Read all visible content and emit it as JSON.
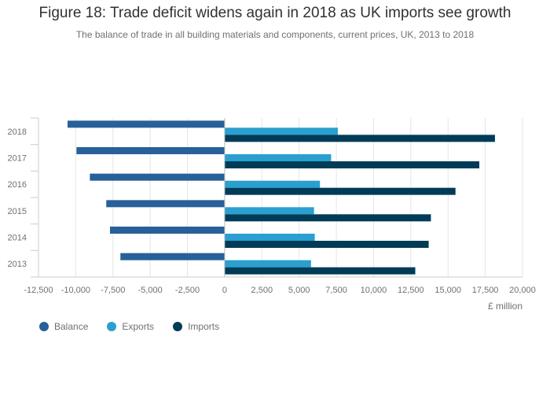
{
  "title": "Figure 18: Trade deficit widens again in 2018 as UK imports see growth",
  "subtitle": "The balance of trade in all building materials and components, current prices, UK, 2013 to 2018",
  "unit_label": "£ million",
  "colors": {
    "Balance": "#27609a",
    "Exports": "#2a9fd0",
    "Imports": "#003c57"
  },
  "chart_data": {
    "type": "bar",
    "orientation": "horizontal",
    "title": "Figure 18: Trade deficit widens again in 2018 as UK imports see growth",
    "xlabel": "£ million",
    "ylabel": "",
    "categories": [
      "2013",
      "2014",
      "2015",
      "2016",
      "2017",
      "2018"
    ],
    "series": [
      {
        "name": "Balance",
        "values": [
          -7000,
          -7700,
          -7950,
          -9050,
          -9950,
          -10550
        ]
      },
      {
        "name": "Exports",
        "values": [
          5800,
          6050,
          6000,
          6400,
          7150,
          7600
        ]
      },
      {
        "name": "Imports",
        "values": [
          12800,
          13700,
          13850,
          15500,
          17100,
          18150
        ]
      }
    ],
    "xlim": [
      -12500,
      20000
    ],
    "ticks": [
      -12500,
      -10000,
      -7500,
      -5000,
      -2500,
      0,
      2500,
      5000,
      7500,
      10000,
      12500,
      15000,
      17500,
      20000
    ],
    "tick_labels": [
      "-12,500",
      "-10,000",
      "-7,500",
      "-5,000",
      "-2,500",
      "0",
      "2,500",
      "5,000",
      "7,500",
      "10,000",
      "12,500",
      "15,000",
      "17,500",
      "20,000"
    ],
    "grid": true,
    "legend": "bottom-left"
  }
}
